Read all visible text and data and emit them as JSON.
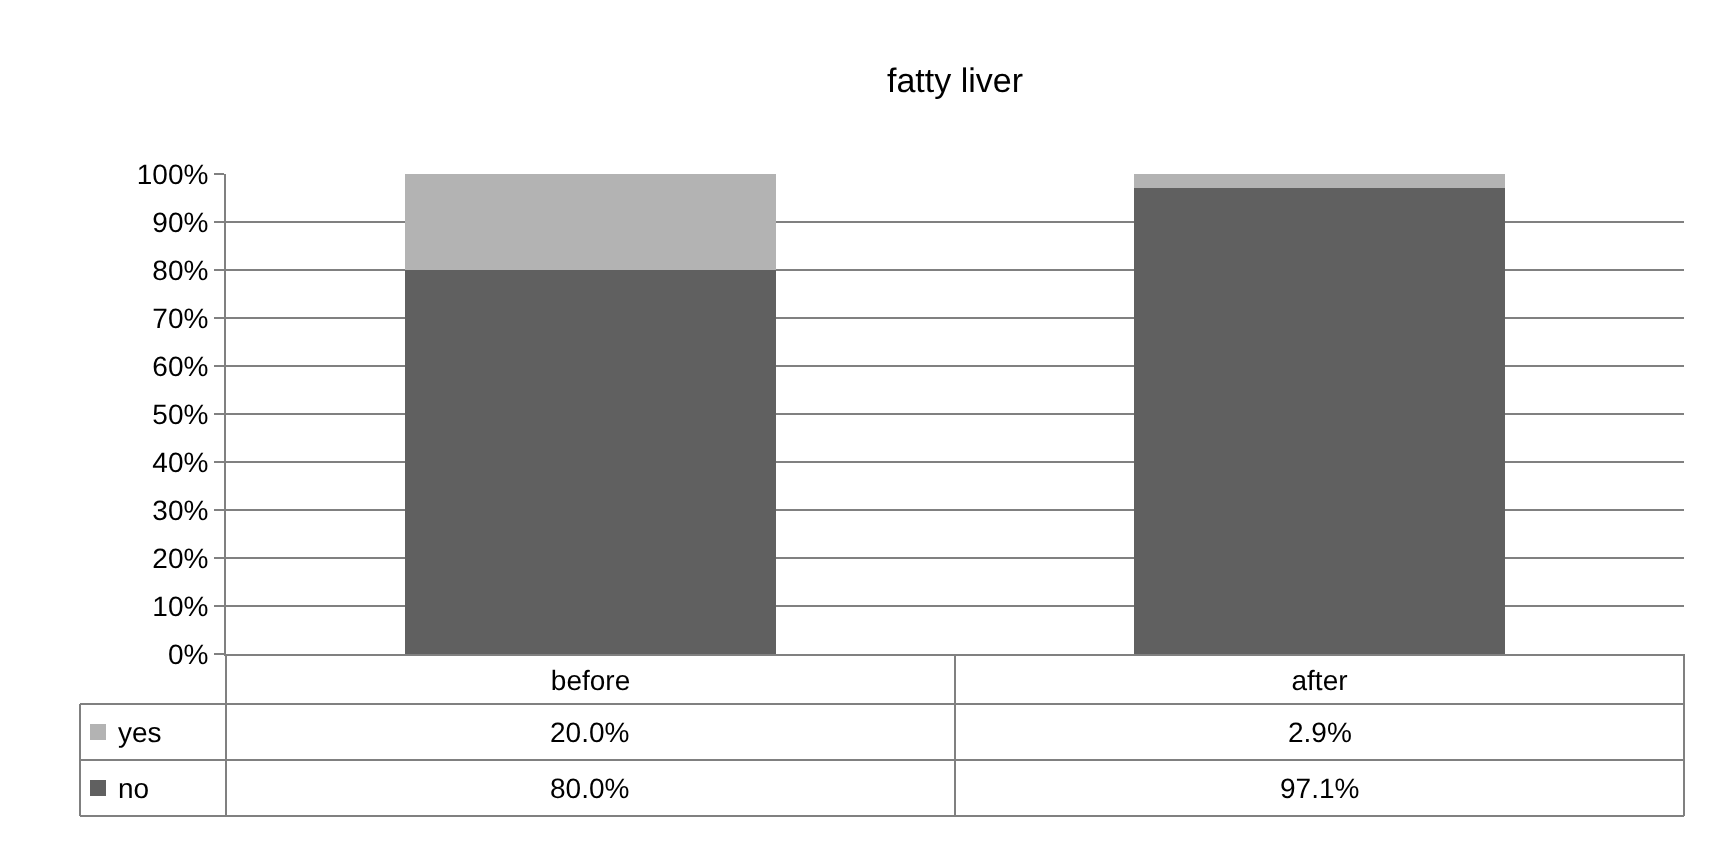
{
  "chart_data": {
    "type": "bar",
    "title": "fatty liver",
    "stacked": true,
    "categories": [
      "before",
      "after"
    ],
    "series": [
      {
        "name": "no",
        "color": "#606060",
        "values": [
          80.0,
          97.1
        ],
        "value_labels": [
          "80.0%",
          "97.1%"
        ]
      },
      {
        "name": "yes",
        "color": "#b3b3b3",
        "values": [
          20.0,
          2.9
        ],
        "value_labels": [
          "20.0%",
          "2.9%"
        ]
      }
    ],
    "ylim": [
      0,
      100
    ],
    "yticks": [
      {
        "value": 0,
        "label": "0%"
      },
      {
        "value": 10,
        "label": "10%"
      },
      {
        "value": 20,
        "label": "20%"
      },
      {
        "value": 30,
        "label": "30%"
      },
      {
        "value": 40,
        "label": "40%"
      },
      {
        "value": 50,
        "label": "50%"
      },
      {
        "value": 60,
        "label": "60%"
      },
      {
        "value": 70,
        "label": "70%"
      },
      {
        "value": 80,
        "label": "80%"
      },
      {
        "value": 90,
        "label": "90%"
      },
      {
        "value": 100,
        "label": "100%"
      }
    ],
    "grid": "y",
    "legend": "bottom left"
  }
}
